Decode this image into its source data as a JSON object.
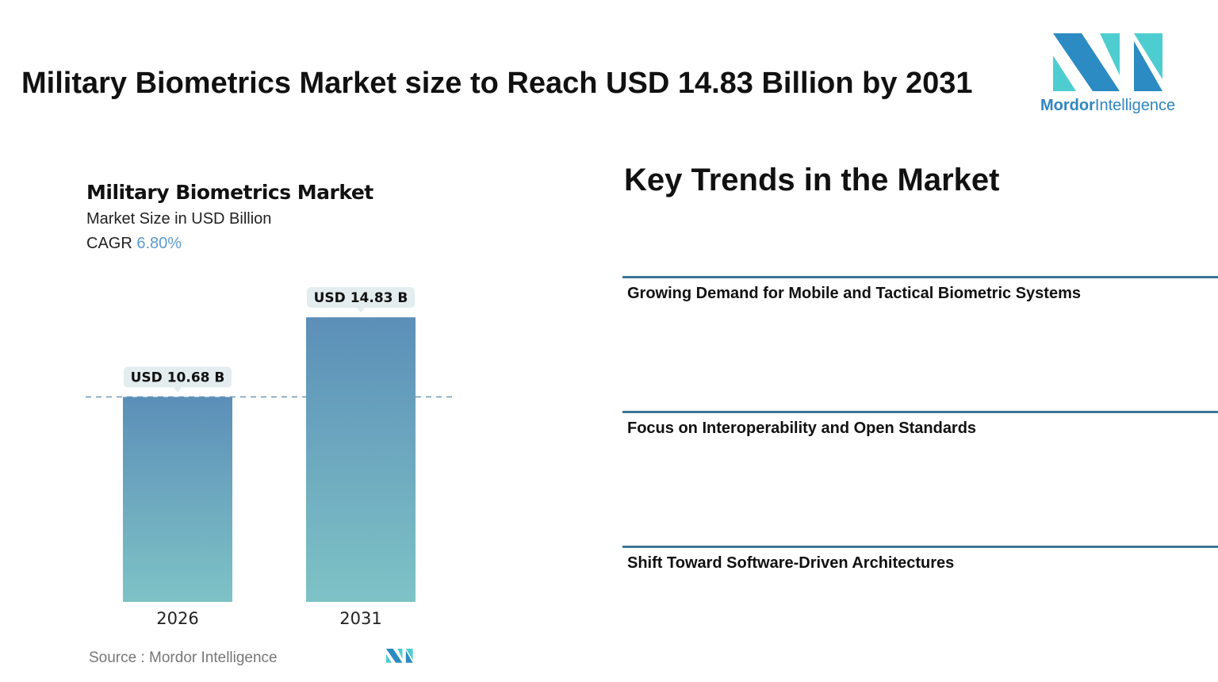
{
  "header": {
    "title": "Military Biometrics Market size to Reach USD 14.83 Billion by 2031"
  },
  "logo": {
    "brand_bold": "Mordor",
    "brand_light": "Intelligence",
    "colors": {
      "dark": "#2b8bc2",
      "light": "#4ecdd0"
    }
  },
  "chart_data": {
    "type": "bar",
    "title": "Military Biometrics Market",
    "subtitle": "Market Size in USD Billion",
    "cagr_label": "CAGR",
    "cagr_value": "6.80%",
    "categories": [
      "2026",
      "2031"
    ],
    "values": [
      10.68,
      14.83
    ],
    "data_labels": [
      "USD 10.68 B",
      "USD 14.83 B"
    ],
    "reference_line": 10.68,
    "grid": false,
    "colors": {
      "bar_top": "#5c8fb8",
      "bar_bottom": "#7ec3c6",
      "label_bg": "#e3ecef",
      "dashed_line": "#6f98b6"
    }
  },
  "source": "Source : Mordor Intelligence",
  "trends": {
    "title": "Key Trends in the Market",
    "items": [
      "Growing Demand for Mobile and Tactical Biometric Systems",
      "Focus on Interoperability and Open Standards",
      "Shift Toward Software-Driven Architectures"
    ]
  }
}
